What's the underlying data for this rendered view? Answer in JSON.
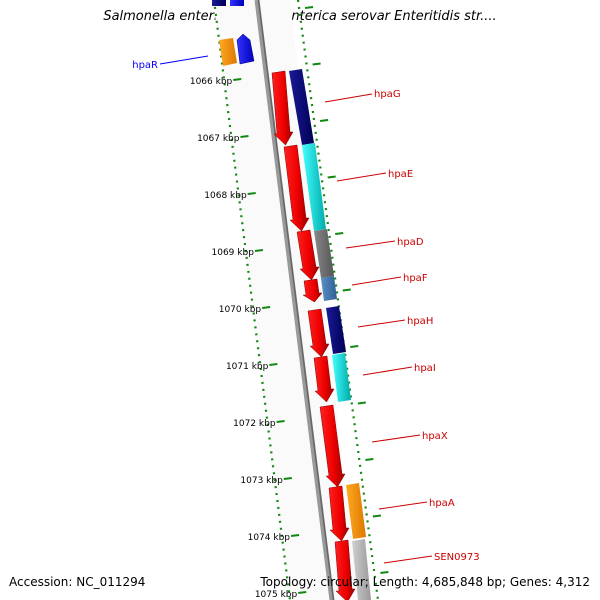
{
  "title": "Salmonella enterica subsp. enterica serovar Enteritidis str....",
  "accession": "Accession: NC_011294",
  "summary": "Topology: circular; Length: 4,685,848 bp; Genes: 4,312",
  "ruler": [
    {
      "label": "1066 kbp"
    },
    {
      "label": "1067 kbp"
    },
    {
      "label": "1068 kbp"
    },
    {
      "label": "1069 kbp"
    },
    {
      "label": "1070 kbp"
    },
    {
      "label": "1071 kbp"
    },
    {
      "label": "1072 kbp"
    },
    {
      "label": "1073 kbp"
    },
    {
      "label": "1074 kbp"
    },
    {
      "label": "1075 kbp"
    }
  ],
  "genes": [
    {
      "name": "hpaR",
      "strand": "forward",
      "color": "#0000ff"
    },
    {
      "name": "hpaG",
      "strand": "reverse",
      "color": "#cc0000"
    },
    {
      "name": "hpaE",
      "strand": "reverse",
      "color": "#cc0000"
    },
    {
      "name": "hpaD",
      "strand": "reverse",
      "color": "#cc0000"
    },
    {
      "name": "hpaF",
      "strand": "reverse",
      "color": "#cc0000"
    },
    {
      "name": "hpaH",
      "strand": "reverse",
      "color": "#cc0000"
    },
    {
      "name": "hpaI",
      "strand": "reverse",
      "color": "#cc0000"
    },
    {
      "name": "hpaX",
      "strand": "reverse",
      "color": "#cc0000"
    },
    {
      "name": "hpaA",
      "strand": "reverse",
      "color": "#cc0000"
    },
    {
      "name": "SEN0973",
      "strand": "reverse",
      "color": "#cc0000"
    }
  ]
}
